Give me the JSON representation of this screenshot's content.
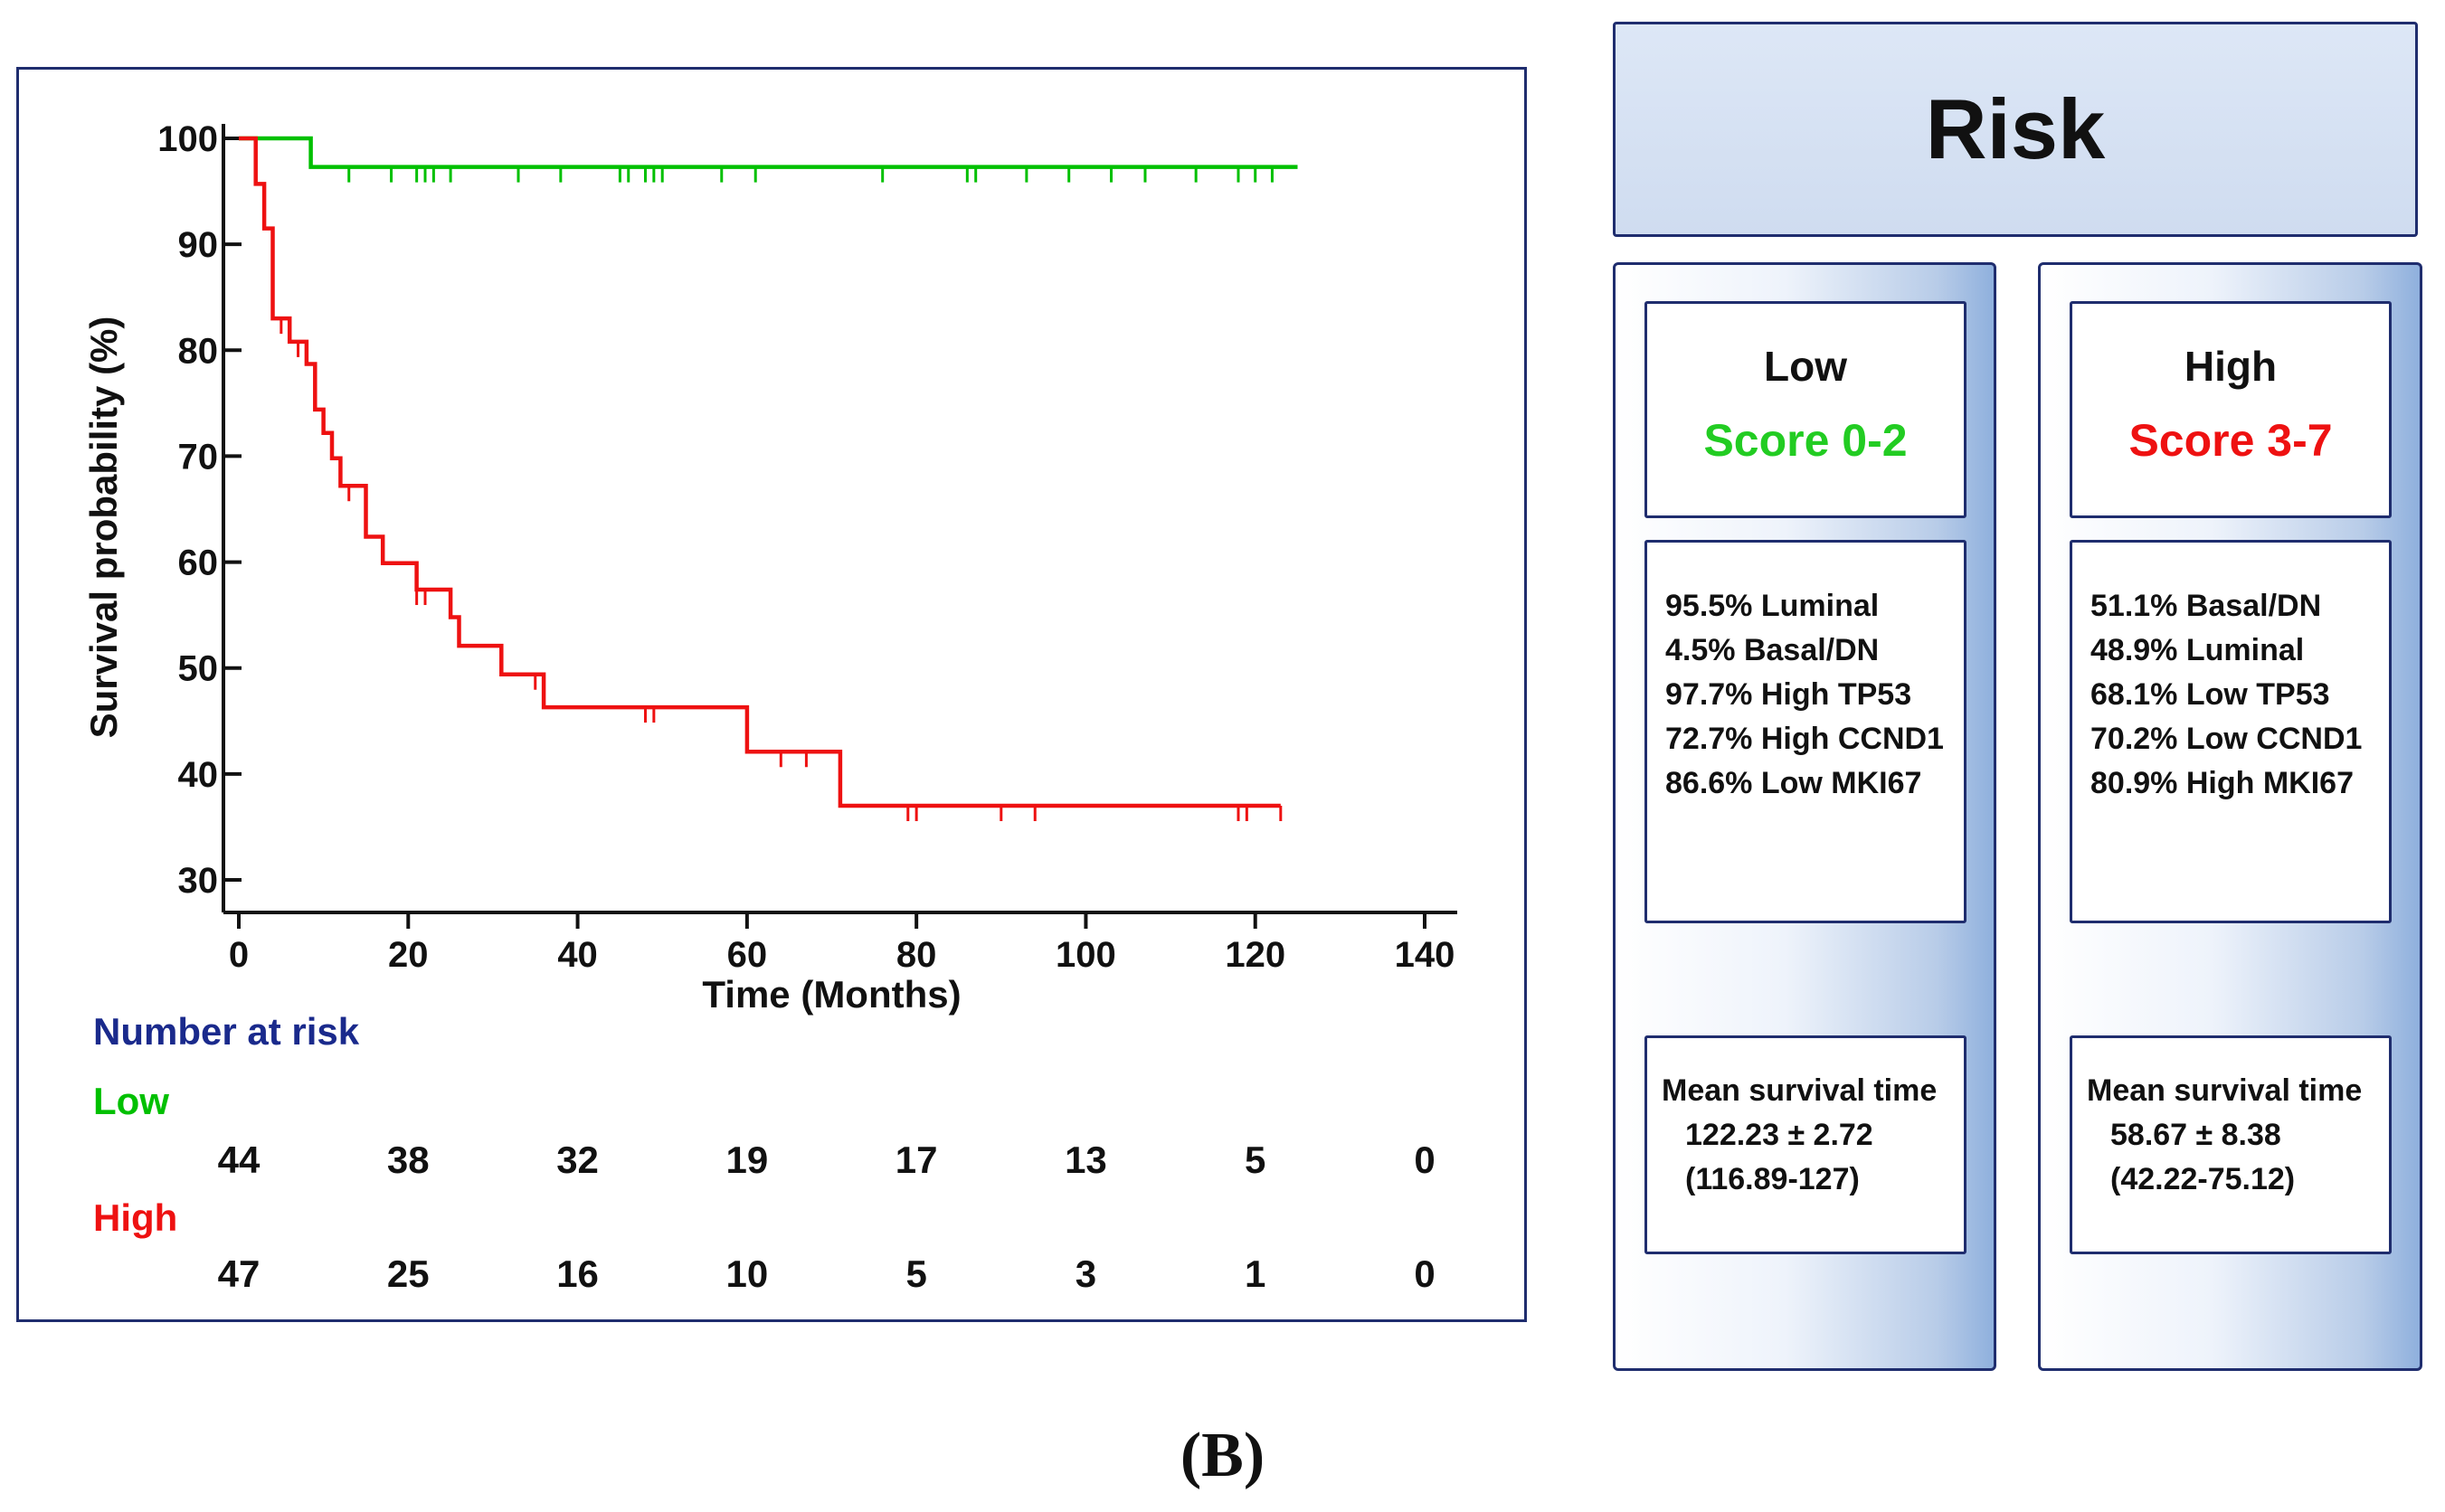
{
  "chart_data": {
    "type": "line",
    "xlabel": "Time (Months)",
    "ylabel": "Survival probability (%)",
    "xlim": [
      0,
      140
    ],
    "ylim": [
      30,
      100
    ],
    "xticks": [
      0,
      20,
      40,
      60,
      80,
      100,
      120,
      140
    ],
    "yticks": [
      30,
      40,
      50,
      60,
      70,
      80,
      90,
      100
    ],
    "series": [
      {
        "name": "Low",
        "color": "#00c000",
        "steps": [
          [
            0,
            100
          ],
          [
            8.5,
            100
          ],
          [
            8.5,
            97.3
          ],
          [
            125,
            97.3
          ]
        ],
        "censors": [
          [
            13,
            97.3
          ],
          [
            18,
            97.3
          ],
          [
            21,
            97.3
          ],
          [
            22,
            97.3
          ],
          [
            23,
            97.3
          ],
          [
            25,
            97.3
          ],
          [
            33,
            97.3
          ],
          [
            38,
            97.3
          ],
          [
            45,
            97.3
          ],
          [
            46,
            97.3
          ],
          [
            48,
            97.3
          ],
          [
            49,
            97.3
          ],
          [
            50,
            97.3
          ],
          [
            57,
            97.3
          ],
          [
            61,
            97.3
          ],
          [
            76,
            97.3
          ],
          [
            86,
            97.3
          ],
          [
            87,
            97.3
          ],
          [
            93,
            97.3
          ],
          [
            98,
            97.3
          ],
          [
            103,
            97.3
          ],
          [
            107,
            97.3
          ],
          [
            113,
            97.3
          ],
          [
            118,
            97.3
          ],
          [
            120,
            97.3
          ],
          [
            122,
            97.3
          ]
        ]
      },
      {
        "name": "High",
        "color": "#ee1111",
        "steps": [
          [
            0,
            100
          ],
          [
            2,
            100
          ],
          [
            2,
            95.7
          ],
          [
            3,
            95.7
          ],
          [
            3,
            91.5
          ],
          [
            4,
            91.5
          ],
          [
            4,
            83
          ],
          [
            6,
            83
          ],
          [
            6,
            80.8
          ],
          [
            8,
            80.8
          ],
          [
            8,
            78.7
          ],
          [
            9,
            78.7
          ],
          [
            9,
            74.4
          ],
          [
            10,
            74.4
          ],
          [
            10,
            72.2
          ],
          [
            11,
            72.2
          ],
          [
            11,
            69.8
          ],
          [
            12,
            69.8
          ],
          [
            12,
            67.2
          ],
          [
            15,
            67.2
          ],
          [
            15,
            62.4
          ],
          [
            17,
            62.4
          ],
          [
            17,
            59.9
          ],
          [
            21,
            59.9
          ],
          [
            21,
            57.4
          ],
          [
            25,
            57.4
          ],
          [
            25,
            54.8
          ],
          [
            26,
            54.8
          ],
          [
            26,
            52.1
          ],
          [
            31,
            52.1
          ],
          [
            31,
            49.4
          ],
          [
            36,
            49.4
          ],
          [
            36,
            46.3
          ],
          [
            60,
            46.3
          ],
          [
            60,
            42.1
          ],
          [
            71,
            42.1
          ],
          [
            71,
            37
          ],
          [
            123,
            37
          ]
        ],
        "censors": [
          [
            5,
            83
          ],
          [
            7,
            80.8
          ],
          [
            9,
            78.7
          ],
          [
            10,
            74.4
          ],
          [
            12,
            69.8
          ],
          [
            13,
            67.2
          ],
          [
            21,
            57.4
          ],
          [
            22,
            57.4
          ],
          [
            35,
            49.4
          ],
          [
            48,
            46.3
          ],
          [
            49,
            46.3
          ],
          [
            64,
            42.1
          ],
          [
            67,
            42.1
          ],
          [
            79,
            37
          ],
          [
            80,
            37
          ],
          [
            90,
            37
          ],
          [
            94,
            37
          ],
          [
            118,
            37
          ],
          [
            119,
            37
          ],
          [
            123,
            37
          ]
        ]
      }
    ],
    "number_at_risk": {
      "title": "Number at risk",
      "times": [
        0,
        20,
        40,
        60,
        80,
        100,
        120,
        140
      ],
      "rows": [
        {
          "label": "Low",
          "color": "#00c000",
          "values": [
            "44",
            "38",
            "32",
            "19",
            "17",
            "13",
            "5",
            "0"
          ]
        },
        {
          "label": "High",
          "color": "#ee1111",
          "values": [
            "47",
            "25",
            "16",
            "10",
            "5",
            "3",
            "1",
            "0"
          ]
        }
      ]
    }
  },
  "risk_panel": {
    "title": "Risk",
    "low": {
      "group": "Low",
      "score": "Score 0-2",
      "score_color": "#22cc22",
      "features": [
        "95.5% Luminal",
        "4.5% Basal/DN",
        "97.7%  High TP53",
        "72.7% High CCND1",
        "86.6% Low MKI67"
      ],
      "mst_label": "Mean survival time",
      "mst_value": "122.23 ± 2.72",
      "mst_ci": "(116.89-127)"
    },
    "high": {
      "group": "High",
      "score": "Score 3-7",
      "score_color": "#ee1111",
      "features": [
        "51.1% Basal/DN",
        "48.9% Luminal",
        "68.1%  Low TP53",
        "70.2% Low CCND1",
        "80.9% High MKI67"
      ],
      "mst_label": "Mean survival time",
      "mst_value": "58.67 ± 8.38",
      "mst_ci": "(42.22-75.12)"
    }
  },
  "caption": "(B)"
}
